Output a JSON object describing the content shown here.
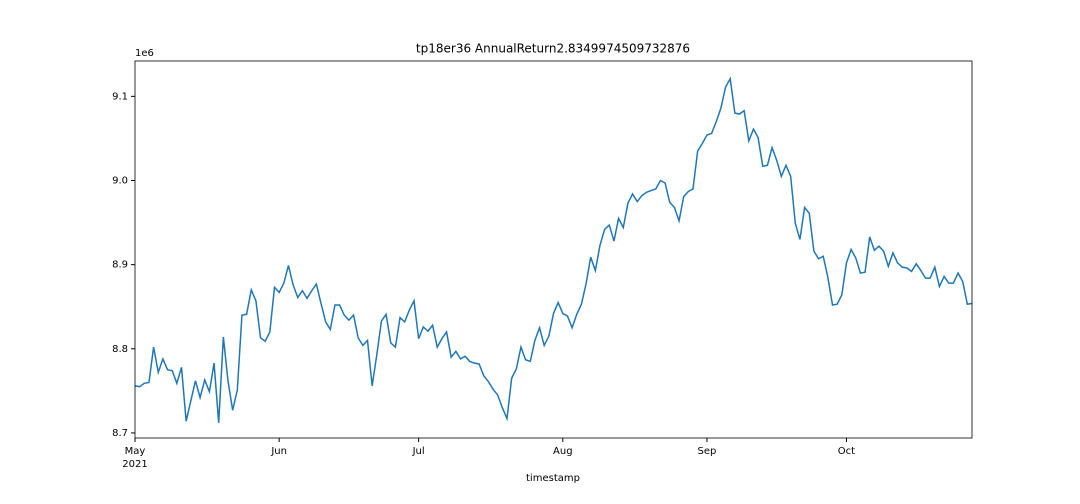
{
  "chart_data": {
    "type": "line",
    "title": "tp18er36 AnnualReturn2.8349974509732876",
    "x_label": "timestamp",
    "y_offset_label": "1e6",
    "x_year_label": "2021",
    "xlim": [
      0,
      180
    ],
    "xticks": [
      {
        "value": 0,
        "label": "May"
      },
      {
        "value": 31,
        "label": "Jun"
      },
      {
        "value": 61,
        "label": "Jul"
      },
      {
        "value": 92,
        "label": "Aug"
      },
      {
        "value": 123,
        "label": "Sep"
      },
      {
        "value": 153,
        "label": "Oct"
      }
    ],
    "ylim": [
      8.694,
      9.142
    ],
    "yticks": [
      8.7,
      8.8,
      8.9,
      {
        "value": 9,
        "label": "9.0"
      },
      9.1
    ],
    "x": [
      0,
      1,
      2,
      3,
      4,
      5,
      6,
      7,
      8,
      9,
      10,
      11,
      12,
      13,
      14,
      15,
      16,
      17,
      18,
      19,
      20,
      21,
      22,
      23,
      24,
      25,
      26,
      27,
      28,
      29,
      30,
      31,
      32,
      33,
      34,
      35,
      36,
      37,
      38,
      39,
      40,
      41,
      42,
      43,
      44,
      45,
      46,
      47,
      48,
      49,
      50,
      51,
      52,
      53,
      54,
      55,
      56,
      57,
      58,
      59,
      60,
      61,
      62,
      63,
      64,
      65,
      66,
      67,
      68,
      69,
      70,
      71,
      72,
      73,
      74,
      75,
      76,
      77,
      78,
      79,
      80,
      81,
      82,
      83,
      84,
      85,
      86,
      87,
      88,
      89,
      90,
      91,
      92,
      93,
      94,
      95,
      96,
      97,
      98,
      99,
      100,
      101,
      102,
      103,
      104,
      105,
      106,
      107,
      108,
      109,
      110,
      111,
      112,
      113,
      114,
      115,
      116,
      117,
      118,
      119,
      120,
      121,
      122,
      123,
      124,
      125,
      126,
      127,
      128,
      129,
      130,
      131,
      132,
      133,
      134,
      135,
      136,
      137,
      138,
      139,
      140,
      141,
      142,
      143,
      144,
      145,
      146,
      147,
      148,
      149,
      150,
      151,
      152,
      153,
      154,
      155,
      156,
      157,
      158,
      159,
      160,
      161,
      162,
      163,
      164,
      165,
      166,
      167,
      168,
      169,
      170,
      171,
      172,
      173,
      174,
      175,
      176,
      177,
      178,
      179,
      180
    ],
    "series": [
      {
        "color": "#1f77b4",
        "values": [
          8.756,
          8.755,
          8.759,
          8.76,
          8.802,
          8.772,
          8.788,
          8.775,
          8.774,
          8.759,
          8.778,
          8.714,
          8.738,
          8.762,
          8.742,
          8.763,
          8.749,
          8.783,
          8.712,
          8.814,
          8.762,
          8.727,
          8.751,
          8.84,
          8.841,
          8.87,
          8.857,
          8.813,
          8.809,
          8.82,
          8.873,
          8.867,
          8.878,
          8.899,
          8.876,
          8.861,
          8.869,
          8.86,
          8.869,
          8.877,
          8.854,
          8.832,
          8.823,
          8.852,
          8.852,
          8.84,
          8.834,
          8.84,
          8.813,
          8.804,
          8.81,
          8.756,
          8.793,
          8.833,
          8.841,
          8.807,
          8.802,
          8.837,
          8.832,
          8.846,
          8.857,
          8.812,
          8.826,
          8.821,
          8.828,
          8.802,
          8.812,
          8.82,
          8.79,
          8.797,
          8.788,
          8.791,
          8.785,
          8.783,
          8.782,
          8.768,
          8.761,
          8.752,
          8.745,
          8.73,
          8.717,
          8.765,
          8.776,
          8.802,
          8.787,
          8.785,
          8.81,
          8.825,
          8.804,
          8.815,
          8.842,
          8.855,
          8.842,
          8.839,
          8.825,
          8.841,
          8.853,
          8.877,
          8.909,
          8.893,
          8.923,
          8.942,
          8.947,
          8.928,
          8.955,
          8.944,
          8.973,
          8.984,
          8.975,
          8.982,
          8.986,
          8.988,
          8.99,
          9.0,
          8.997,
          8.974,
          8.968,
          8.952,
          8.981,
          8.987,
          8.99,
          9.035,
          9.044,
          9.054,
          9.056,
          9.07,
          9.086,
          9.111,
          9.121,
          9.08,
          9.079,
          9.083,
          9.047,
          9.061,
          9.051,
          9.017,
          9.018,
          9.039,
          9.024,
          9.005,
          9.018,
          9.005,
          8.949,
          8.93,
          8.968,
          8.961,
          8.916,
          8.907,
          8.91,
          8.885,
          8.852,
          8.853,
          8.864,
          8.902,
          8.918,
          8.908,
          8.89,
          8.891,
          8.933,
          8.917,
          8.922,
          8.916,
          8.898,
          8.914,
          8.902,
          8.897,
          8.896,
          8.892,
          8.901,
          8.893,
          8.884,
          8.884,
          8.897,
          8.874,
          8.886,
          8.878,
          8.878,
          8.89,
          8.88,
          8.853,
          8.854
        ]
      }
    ]
  }
}
